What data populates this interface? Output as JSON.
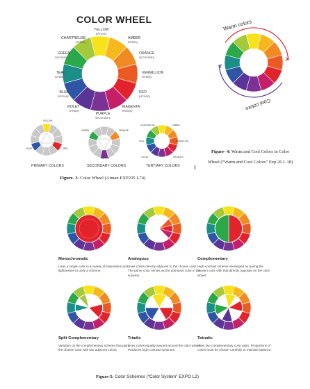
{
  "figure3": {
    "title": "COLOR WHEEL",
    "labels": {
      "yellow": {
        "name": "YELLOW",
        "type": "primary"
      },
      "amber": {
        "name": "AMBER",
        "type": "tertiary"
      },
      "orange": {
        "name": "ORANGE",
        "type": "secondary"
      },
      "vermillion": {
        "name": "VERMILLION",
        "type": "tertiary"
      },
      "red": {
        "name": "RED",
        "type": "primary"
      },
      "magenta": {
        "name": "MAGENTA",
        "type": "tertiary"
      },
      "purple": {
        "name": "PURPLE",
        "type": "secondary"
      },
      "violet": {
        "name": "VIOLET",
        "type": "tertiary"
      },
      "blue": {
        "name": "BLUE",
        "type": "primary"
      },
      "teal": {
        "name": "TEAL",
        "type": "tertiary"
      },
      "green": {
        "name": "GREEN",
        "type": "secondary"
      },
      "chartreuse": {
        "name": "CHARTREUSE",
        "type": "tertiary"
      }
    },
    "mini_labels": {
      "yellow": "YELLOW",
      "red": "RED",
      "blue": "BLUE",
      "green": "GREEN",
      "orange": "ORANGE",
      "purple": "PURPLE",
      "chartreuse": "CHARTREUSE",
      "amber": "AMBER",
      "teal": "TEAL",
      "vermillion": "VERMILLION",
      "violet": "VIOLET",
      "magenta": "MAGENTA"
    },
    "mini_captions": [
      "PRIMARY COLORS",
      "SECONDARY COLORS",
      "TERTIARY COLORS"
    ],
    "caption_label": "Figure- 3",
    "caption_text": ": Color Wheel (Aiman EXP235 L74)"
  },
  "figure4": {
    "warm_label": "Warm colors",
    "cool_label": "Cool colors",
    "caption_label": "Figure- 4:",
    "caption_text": " Warm and Cool Colors in Color Wheel (“Warm and Cool Colors” Exp 26  L 18)"
  },
  "figure5": {
    "schemes": [
      {
        "name": "Monochromatic",
        "desc": "Uses a single color in a variety of saturations and lightnesses to unify a scheme."
      },
      {
        "name": "Analogous",
        "desc": "Uses colors directly adjacent to the chosen color. The prime color serves as the dominant color in the scheme."
      },
      {
        "name": "Complementary",
        "desc": "High-contrast scheme developed by paring the chosen color with that directly opposite on the color wheel."
      },
      {
        "name": "Split Complementary",
        "desc": "Variation on the complementary scheme that pairs the chosen color with two adjacent colors."
      },
      {
        "name": "Triadic",
        "desc": "Uses colors equally spaced around the color wheel. Produces high-contrast schemes."
      },
      {
        "name": "Tetradic",
        "desc": "Uses two complementary color pairs. Proportions of colors must be chosen carefully to maintain balance."
      }
    ],
    "caption_label": "Figure-5:",
    "caption_text": " Color Schemes (“Color System” EXPO L2)"
  },
  "colors": {
    "yellow": "#f7e21b",
    "amber": "#f6b81c",
    "orange": "#f18a22",
    "vermillion": "#ec5a24",
    "red": "#e3232b",
    "magenta": "#c51f6a",
    "purple": "#7b3294",
    "violet": "#5a3597",
    "blue": "#2f56a6",
    "teal": "#1a8f8a",
    "green": "#2aa84a",
    "chartreuse": "#a4c93a"
  }
}
